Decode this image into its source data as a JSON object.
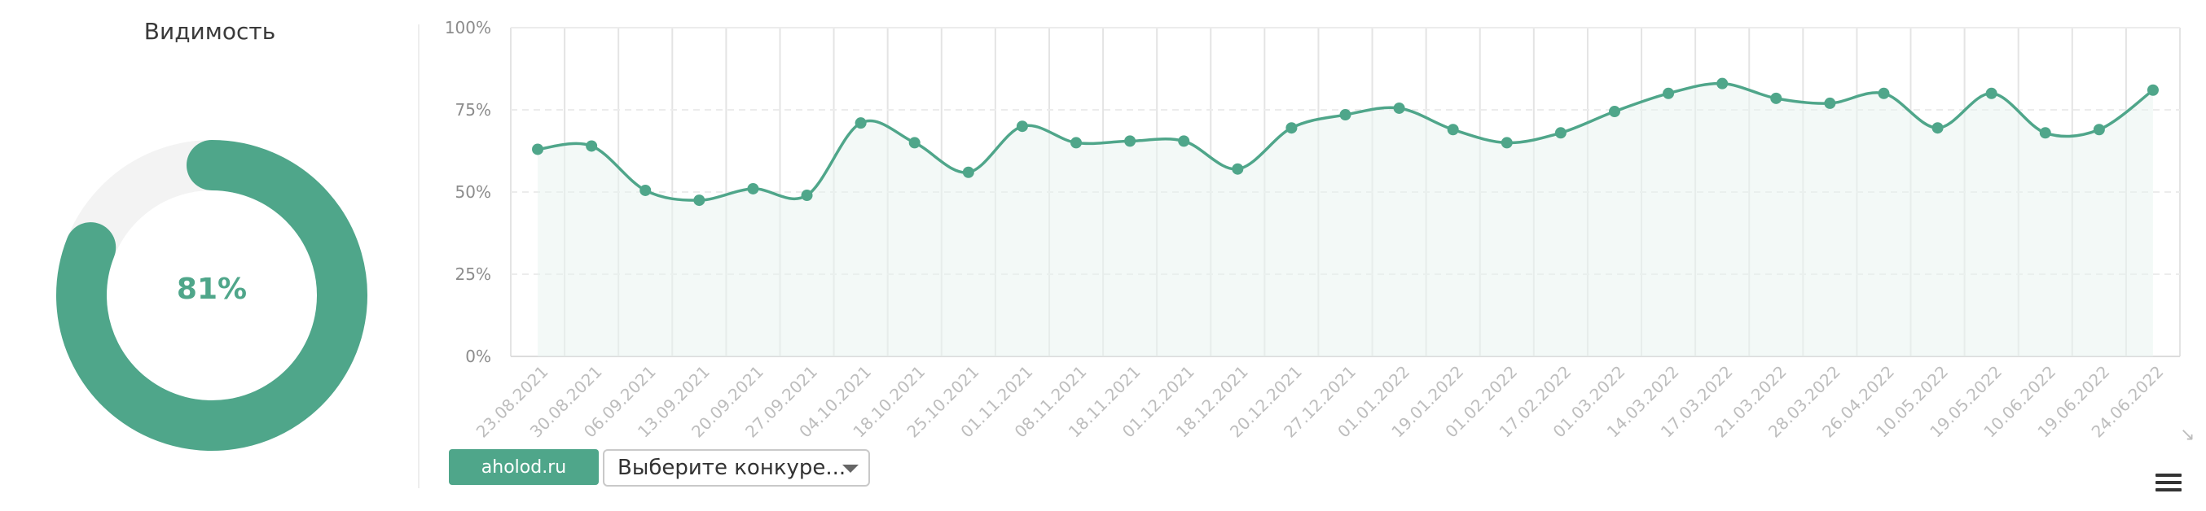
{
  "visibility": {
    "title": "Видимость",
    "value_label": "81%",
    "value": 0.81
  },
  "colors": {
    "accent": "#4fa68a",
    "track": "#f3f3f3",
    "area_fill": "#eaf4f0"
  },
  "controls": {
    "site_label": "aholod.ru",
    "competitor_placeholder": "Выберите конкуре..."
  },
  "icons": {
    "menu": "hamburger-menu-icon",
    "export": "diagonal-arrow-icon"
  },
  "chart_data": {
    "type": "area",
    "x": [
      "23.08.2021",
      "30.08.2021",
      "06.09.2021",
      "13.09.2021",
      "20.09.2021",
      "27.09.2021",
      "04.10.2021",
      "18.10.2021",
      "25.10.2021",
      "01.11.2021",
      "08.11.2021",
      "18.11.2021",
      "01.12.2021",
      "18.12.2021",
      "20.12.2021",
      "27.12.2021",
      "01.01.2022",
      "19.01.2022",
      "01.02.2022",
      "17.02.2022",
      "01.03.2022",
      "14.03.2022",
      "17.03.2022",
      "21.03.2022",
      "28.03.2022",
      "26.04.2022",
      "10.05.2022",
      "19.05.2022",
      "10.06.2022",
      "19.06.2022",
      "24.06.2022"
    ],
    "values": [
      63,
      64,
      50.5,
      47.5,
      51,
      49,
      71,
      65,
      56,
      70,
      65,
      65.5,
      65.5,
      57,
      69.5,
      73.5,
      75.5,
      69,
      65,
      68,
      74.5,
      80,
      83,
      78.5,
      77,
      80,
      69.5,
      80,
      68,
      69,
      81
    ],
    "ylim": [
      0,
      100
    ],
    "yticks": [
      "0%",
      "25%",
      "50%",
      "75%",
      "100%"
    ],
    "grid": true,
    "legend": "none"
  }
}
